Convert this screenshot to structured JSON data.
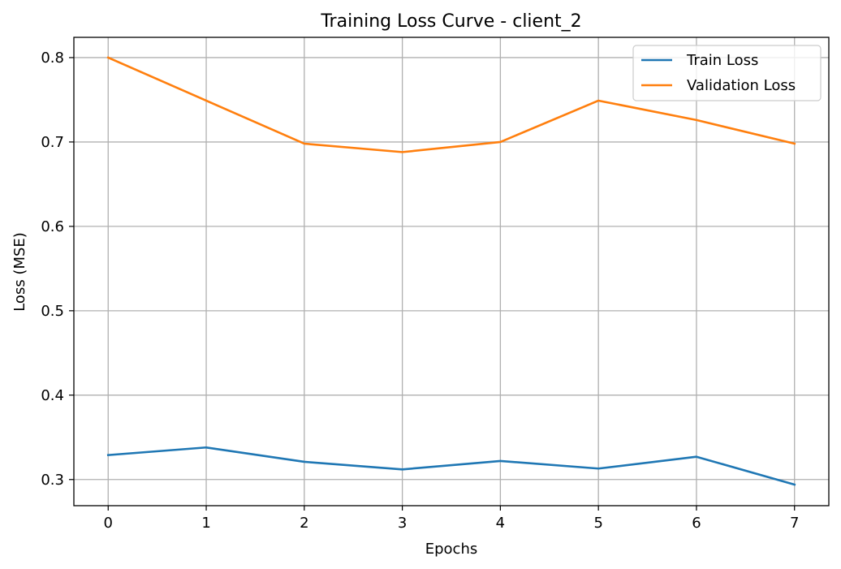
{
  "chart_data": {
    "type": "line",
    "title": "Training Loss Curve - client_2",
    "xlabel": "Epochs",
    "ylabel": "Loss (MSE)",
    "x": [
      0,
      1,
      2,
      3,
      4,
      5,
      6,
      7
    ],
    "xticks": [
      "0",
      "1",
      "2",
      "3",
      "4",
      "5",
      "6",
      "7"
    ],
    "yticks": [
      "0.3",
      "0.4",
      "0.5",
      "0.6",
      "0.7",
      "0.8"
    ],
    "ytick_values": [
      0.3,
      0.4,
      0.5,
      0.6,
      0.7,
      0.8
    ],
    "xlim": [
      -0.35,
      7.35
    ],
    "ylim": [
      0.269,
      0.824
    ],
    "grid": true,
    "legend_position": "top-right",
    "series": [
      {
        "name": "Train Loss",
        "color": "#1f77b4",
        "values": [
          0.329,
          0.338,
          0.321,
          0.312,
          0.322,
          0.313,
          0.327,
          0.294
        ]
      },
      {
        "name": "Validation Loss",
        "color": "#ff7f0e",
        "values": [
          0.8,
          0.749,
          0.698,
          0.688,
          0.7,
          0.749,
          0.726,
          0.698
        ]
      }
    ]
  }
}
